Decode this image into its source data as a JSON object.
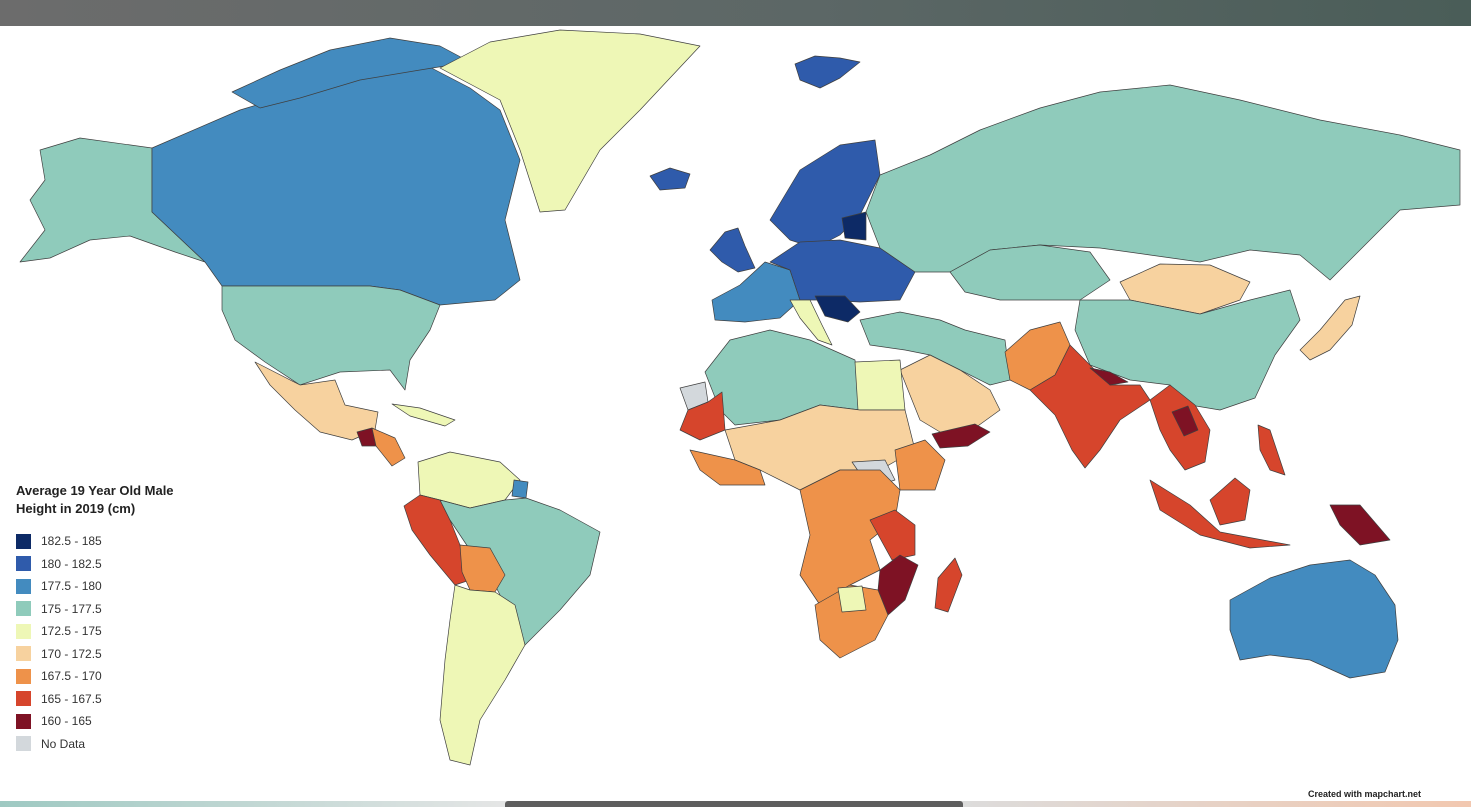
{
  "legend": {
    "title": "Average 19 Year Old Male\nHeight in 2019 (cm)",
    "items": [
      {
        "label": "182.5 - 185",
        "color": "#0d2a66"
      },
      {
        "label": "180 - 182.5",
        "color": "#2f5bab"
      },
      {
        "label": "177.5 - 180",
        "color": "#438bbf"
      },
      {
        "label": "175 - 177.5",
        "color": "#8fcbbb"
      },
      {
        "label": "172.5 - 175",
        "color": "#eef7b6"
      },
      {
        "label": "170 - 172.5",
        "color": "#f7d29f"
      },
      {
        "label": "167.5 - 170",
        "color": "#ee924a"
      },
      {
        "label": "165 - 167.5",
        "color": "#d6452c"
      },
      {
        "label": "160 - 165",
        "color": "#7e1224"
      },
      {
        "label": "No Data",
        "color": "#d3d8dc"
      }
    ]
  },
  "credit": "Created with mapchart.net",
  "regions": [
    {
      "name": "alaska",
      "category": "175 - 177.5"
    },
    {
      "name": "canada",
      "category": "177.5 - 180"
    },
    {
      "name": "greenland",
      "category": "172.5 - 175"
    },
    {
      "name": "usa",
      "category": "175 - 177.5"
    },
    {
      "name": "mexico",
      "category": "170 - 172.5"
    },
    {
      "name": "guatemala",
      "category": "160 - 165"
    },
    {
      "name": "central-america",
      "category": "167.5 - 170"
    },
    {
      "name": "cuba",
      "category": "172.5 - 175"
    },
    {
      "name": "colombia-venezuela",
      "category": "172.5 - 175"
    },
    {
      "name": "guyana",
      "category": "177.5 - 180"
    },
    {
      "name": "peru-ecuador",
      "category": "165 - 167.5"
    },
    {
      "name": "bolivia",
      "category": "167.5 - 170"
    },
    {
      "name": "brazil",
      "category": "175 - 177.5"
    },
    {
      "name": "argentina-chile",
      "category": "172.5 - 175"
    },
    {
      "name": "iceland",
      "category": "180 - 182.5"
    },
    {
      "name": "svalbard",
      "category": "180 - 182.5"
    },
    {
      "name": "scandinavia",
      "category": "180 - 182.5"
    },
    {
      "name": "baltics",
      "category": "182.5 - 185"
    },
    {
      "name": "uk-ireland",
      "category": "180 - 182.5"
    },
    {
      "name": "france-iberia",
      "category": "177.5 - 180"
    },
    {
      "name": "central-europe",
      "category": "180 - 182.5"
    },
    {
      "name": "italy",
      "category": "172.5 - 175"
    },
    {
      "name": "balkans",
      "category": "182.5 - 185"
    },
    {
      "name": "russia",
      "category": "175 - 177.5"
    },
    {
      "name": "kazakhstan",
      "category": "175 - 177.5"
    },
    {
      "name": "mongolia",
      "category": "170 - 172.5"
    },
    {
      "name": "china",
      "category": "175 - 177.5"
    },
    {
      "name": "japan",
      "category": "170 - 172.5"
    },
    {
      "name": "middle-east",
      "category": "175 - 177.5"
    },
    {
      "name": "arabia",
      "category": "170 - 172.5"
    },
    {
      "name": "yemen",
      "category": "160 - 165"
    },
    {
      "name": "pakistan",
      "category": "167.5 - 170"
    },
    {
      "name": "india",
      "category": "165 - 167.5"
    },
    {
      "name": "nepal",
      "category": "160 - 165"
    },
    {
      "name": "southeast-asia",
      "category": "165 - 167.5"
    },
    {
      "name": "laos",
      "category": "160 - 165"
    },
    {
      "name": "indonesia",
      "category": "165 - 167.5"
    },
    {
      "name": "papua",
      "category": "160 - 165"
    },
    {
      "name": "australia",
      "category": "177.5 - 180"
    },
    {
      "name": "north-africa",
      "category": "175 - 177.5"
    },
    {
      "name": "egypt",
      "category": "172.5 - 175"
    },
    {
      "name": "mauritania",
      "category": "165 - 167.5"
    },
    {
      "name": "western-sahara",
      "category": "No Data"
    },
    {
      "name": "sahel",
      "category": "170 - 172.5"
    },
    {
      "name": "west-africa",
      "category": "167.5 - 170"
    },
    {
      "name": "south-sudan",
      "category": "No Data"
    },
    {
      "name": "ethiopia",
      "category": "167.5 - 170"
    },
    {
      "name": "central-africa",
      "category": "167.5 - 170"
    },
    {
      "name": "tanzania",
      "category": "165 - 167.5"
    },
    {
      "name": "mozambique",
      "category": "160 - 165"
    },
    {
      "name": "madagascar",
      "category": "165 - 167.5"
    },
    {
      "name": "southern-africa",
      "category": "167.5 - 170"
    },
    {
      "name": "botswana",
      "category": "172.5 - 175"
    }
  ]
}
